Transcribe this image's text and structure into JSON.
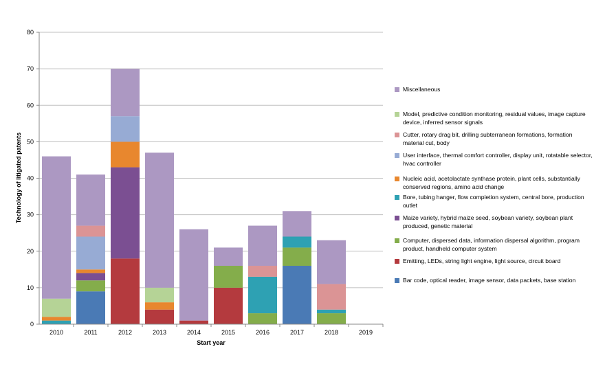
{
  "chart_data": {
    "type": "bar",
    "stacked": true,
    "title": "",
    "xlabel": "Start year",
    "ylabel": "Technology of litigated patents",
    "ylim": [
      0,
      80
    ],
    "yticks": [
      0,
      10,
      20,
      30,
      40,
      50,
      60,
      70,
      80
    ],
    "grid": true,
    "legend_position": "right",
    "categories": [
      "2010",
      "2011",
      "2012",
      "2013",
      "2014",
      "2015",
      "2016",
      "2017",
      "2018",
      "2019"
    ],
    "series": [
      {
        "name": "Bar code, optical reader, image sensor, data packets, base station",
        "color": "#4a7ab5",
        "values": [
          0,
          9,
          0,
          0,
          0,
          0,
          0,
          16,
          0,
          0
        ]
      },
      {
        "name": "Emitting, LEDs, string light engine, light source, circuit board",
        "color": "#b43a3e",
        "values": [
          0,
          0,
          18,
          4,
          1,
          10,
          0,
          0,
          0,
          0
        ]
      },
      {
        "name": "Computer, dispersed data, information dispersal algorithm, program product, handheld computer system",
        "color": "#84ad4b",
        "values": [
          0,
          3,
          0,
          0,
          0,
          6,
          3,
          5,
          3,
          0
        ]
      },
      {
        "name": "Maize variety, hybrid maize seed, soybean variety, soybean plant produced, genetic material",
        "color": "#7b4f92",
        "values": [
          0,
          2,
          25,
          0,
          0,
          0,
          0,
          0,
          0,
          0
        ]
      },
      {
        "name": "Bore, tubing hanger, flow completion system, central bore, production outlet",
        "color": "#2ea1b3",
        "values": [
          1,
          0,
          0,
          0,
          0,
          0,
          10,
          3,
          1,
          0
        ]
      },
      {
        "name": "Nucleic acid, acetolactate synthase protein, plant cells, substantially conserved regions, amino acid change",
        "color": "#e8872e",
        "values": [
          1,
          1,
          7,
          2,
          0,
          0,
          0,
          0,
          0,
          0
        ]
      },
      {
        "name": "User interface, thermal comfort controller, display unit, rotatable selector, hvac controller",
        "color": "#97abd4",
        "values": [
          0,
          9,
          7,
          0,
          0,
          0,
          0,
          0,
          0,
          0
        ]
      },
      {
        "name": "Cutter, rotary drag bit, drilling subterranean formations, formation material cut, body",
        "color": "#db9495",
        "values": [
          0,
          3,
          0,
          0,
          0,
          0,
          3,
          0,
          7,
          0
        ]
      },
      {
        "name": "Model, predictive condition monitoring, residual values, image capture device, inferred sensor signals",
        "color": "#b5d396",
        "values": [
          5,
          0,
          0,
          4,
          0,
          0,
          0,
          0,
          0,
          0
        ]
      },
      {
        "name": "Miscellaneous",
        "color": "#ac98c2",
        "values": [
          39,
          14,
          13,
          37,
          25,
          5,
          11,
          7,
          12,
          0
        ]
      }
    ]
  }
}
